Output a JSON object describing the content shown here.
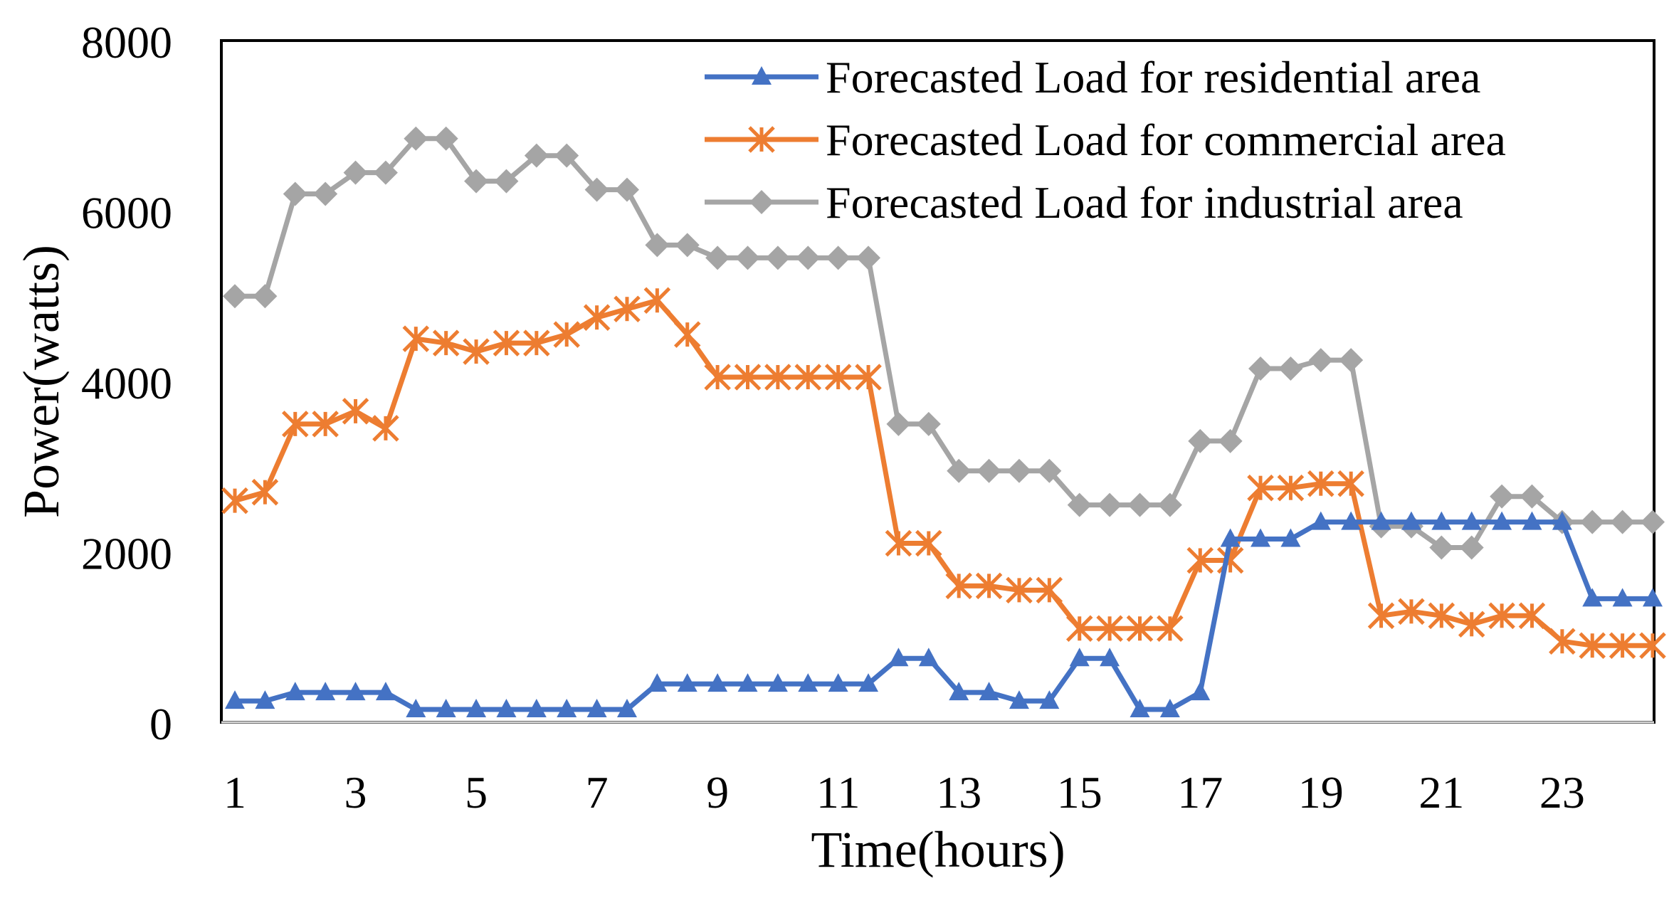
{
  "chart_data": {
    "type": "line",
    "title": "",
    "xlabel": "Time(hours)",
    "ylabel": "Power(watts)",
    "ylim": [
      0,
      8000
    ],
    "yticks": [
      0,
      2000,
      4000,
      6000,
      8000
    ],
    "xlim": [
      1,
      24.5
    ],
    "xticks": [
      1,
      3,
      5,
      7,
      9,
      11,
      13,
      15,
      17,
      19,
      21,
      23
    ],
    "legend_position": "top-right",
    "grid": false,
    "x": [
      1,
      1.5,
      2,
      2.5,
      3,
      3.5,
      4,
      4.5,
      5,
      5.5,
      6,
      6.5,
      7,
      7.5,
      8,
      8.5,
      9,
      9.5,
      10,
      10.5,
      11,
      11.5,
      12,
      12.5,
      13,
      13.5,
      14,
      14.5,
      15,
      15.5,
      16,
      16.5,
      17,
      17.5,
      18,
      18.5,
      19,
      19.5,
      20,
      20.5,
      21,
      21.5,
      22,
      22.5,
      23,
      23.5,
      24,
      24.5
    ],
    "series": [
      {
        "name": "Forecasted Load for residential area",
        "color": "#4472C4",
        "marker": "triangle",
        "values": [
          250,
          250,
          350,
          350,
          350,
          350,
          150,
          150,
          150,
          150,
          150,
          150,
          150,
          150,
          450,
          450,
          450,
          450,
          450,
          450,
          450,
          450,
          750,
          750,
          350,
          350,
          250,
          250,
          750,
          750,
          150,
          150,
          350,
          2150,
          2150,
          2150,
          2350,
          2350,
          2350,
          2350,
          2350,
          2350,
          2350,
          2350,
          2350,
          1450,
          1450,
          1450
        ]
      },
      {
        "name": "Forecasted Load for commercial area",
        "color": "#ED7D31",
        "marker": "asterisk",
        "values": [
          2600,
          2700,
          3500,
          3500,
          3650,
          3450,
          4500,
          4450,
          4350,
          4450,
          4450,
          4550,
          4750,
          4850,
          4950,
          4550,
          4050,
          4050,
          4050,
          4050,
          4050,
          4050,
          2100,
          2100,
          1600,
          1600,
          1550,
          1550,
          1100,
          1100,
          1100,
          1100,
          1900,
          1900,
          2750,
          2750,
          2800,
          2800,
          1250,
          1300,
          1250,
          1150,
          1250,
          1250,
          950,
          900,
          900,
          900
        ]
      },
      {
        "name": "Forecasted Load for industrial area",
        "color": "#A5A5A5",
        "marker": "diamond",
        "values": [
          5000,
          5000,
          6200,
          6200,
          6450,
          6450,
          6850,
          6850,
          6350,
          6350,
          6650,
          6650,
          6250,
          6250,
          5600,
          5600,
          5450,
          5450,
          5450,
          5450,
          5450,
          5450,
          3500,
          3500,
          2950,
          2950,
          2950,
          2950,
          2550,
          2550,
          2550,
          2550,
          3300,
          3300,
          4150,
          4150,
          4250,
          4250,
          2300,
          2300,
          2050,
          2050,
          2650,
          2650,
          2350,
          2350,
          2350,
          2350
        ]
      }
    ]
  }
}
